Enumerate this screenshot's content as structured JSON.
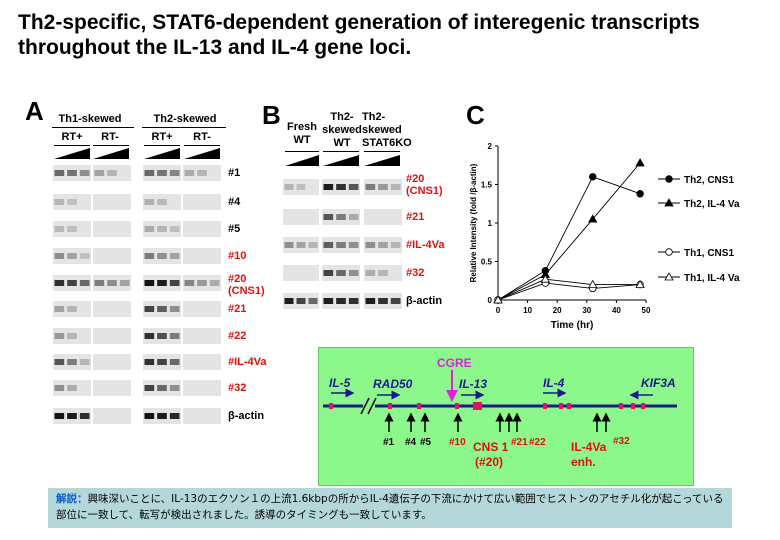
{
  "title": "Th2-specific, STAT6-dependent generation of interegenic transcripts throughout the IL-13 and IL-4 gene loci.",
  "panel_a": {
    "label": "A",
    "group_th1": "Th1-skewed",
    "group_th2": "Th2-skewed",
    "rt_plus": "RT+",
    "rt_minus": "RT-",
    "rows": [
      {
        "label": "#1",
        "color": "#000000"
      },
      {
        "label": "#4",
        "color": "#000000"
      },
      {
        "label": "#5",
        "color": "#000000"
      },
      {
        "label": "#10",
        "color": "#e01010"
      },
      {
        "label": "#20",
        "label2": "(CNS1)",
        "color": "#e01010"
      },
      {
        "label": "#21",
        "color": "#e01010"
      },
      {
        "label": "#22",
        "color": "#e01010"
      },
      {
        "label": "#IL-4Va",
        "color": "#e01010"
      },
      {
        "label": "#32",
        "color": "#e01010"
      },
      {
        "label": "β-actin",
        "color": "#000000"
      }
    ]
  },
  "panel_b": {
    "label": "B",
    "col1": [
      "Fresh",
      "WT"
    ],
    "col2": [
      "Th2-",
      "skewed",
      "WT"
    ],
    "col3": [
      "Th2-",
      "skewed",
      "STAT6KO"
    ],
    "rows": [
      {
        "label": "#20",
        "label2": "(CNS1)",
        "color": "#e01010"
      },
      {
        "label": "#21",
        "color": "#e01010"
      },
      {
        "label": "#IL-4Va",
        "color": "#e01010"
      },
      {
        "label": "#32",
        "color": "#e01010"
      },
      {
        "label": "β-actin",
        "color": "#000000"
      }
    ]
  },
  "panel_c": {
    "label": "C",
    "chart_data": {
      "type": "line",
      "xlabel": "Time (hr)",
      "ylabel": "Relative Intensity (fold /β-actin)",
      "xlim": [
        0,
        50
      ],
      "ylim": [
        0,
        2
      ],
      "xticks": [
        "0",
        "10",
        "20",
        "30",
        "40",
        "50"
      ],
      "yticks": [
        "0",
        "0.5",
        "1",
        "1.5",
        "2"
      ],
      "series": [
        {
          "name": "Th2, CNS1",
          "marker": "circle-filled",
          "x": [
            0,
            16,
            32,
            48
          ],
          "y": [
            0.0,
            0.38,
            1.6,
            1.38
          ]
        },
        {
          "name": "Th2, IL-4 Va",
          "marker": "triangle-filled",
          "x": [
            0,
            16,
            32,
            48
          ],
          "y": [
            0.0,
            0.33,
            1.05,
            1.78
          ]
        },
        {
          "name": "Th1, CNS1",
          "marker": "circle-open",
          "x": [
            0,
            16,
            32,
            48
          ],
          "y": [
            0.0,
            0.22,
            0.15,
            0.2
          ]
        },
        {
          "name": "Th1, IL-4 Va",
          "marker": "triangle-open",
          "x": [
            0,
            16,
            32,
            48
          ],
          "y": [
            0.0,
            0.27,
            0.2,
            0.2
          ]
        }
      ]
    }
  },
  "map": {
    "genes": [
      "IL-5",
      "RAD50",
      "IL-13",
      "IL-4",
      "KIF3A"
    ],
    "cgre": "CGRE",
    "sites": [
      "#1",
      "#4",
      "#5",
      "#10",
      "#21",
      "#22",
      "#32"
    ],
    "cns_a": "CNS 1",
    "cns_b": "(#20)",
    "il4va_a": "IL-4Va",
    "il4va_b": "enh."
  },
  "note": {
    "keyword": "解説：",
    "text": "興味深いことに、IL-13のエクソン１の上流1.6kbpの所からIL-4遺伝子の下流にかけて広い範囲でヒストンのアセチル化が起こっている部位に一致して、転写が検出されました。誘導のタイミングも一致しています。"
  }
}
